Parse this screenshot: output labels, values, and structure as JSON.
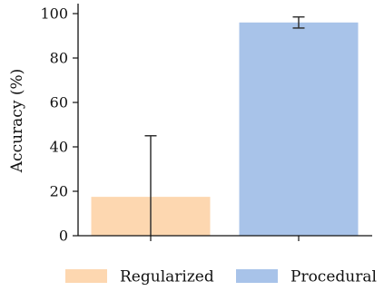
{
  "chart_data": {
    "type": "bar",
    "title": "",
    "xlabel": "",
    "ylabel": "Accuracy (%)",
    "ylim": [
      0,
      100
    ],
    "yticks": [
      0,
      20,
      40,
      60,
      80,
      100
    ],
    "categories": [
      "Regularized",
      "Procedural"
    ],
    "values": [
      17.5,
      96
    ],
    "error_bars": [
      {
        "low": 0,
        "high": 45
      },
      {
        "low": 93.5,
        "high": 98.5
      }
    ],
    "colors": [
      "#fdd7b0",
      "#a8c3e9"
    ],
    "grid": false,
    "legend": {
      "placement": "bottom",
      "entries": [
        "Regularized",
        "Procedural"
      ]
    }
  }
}
